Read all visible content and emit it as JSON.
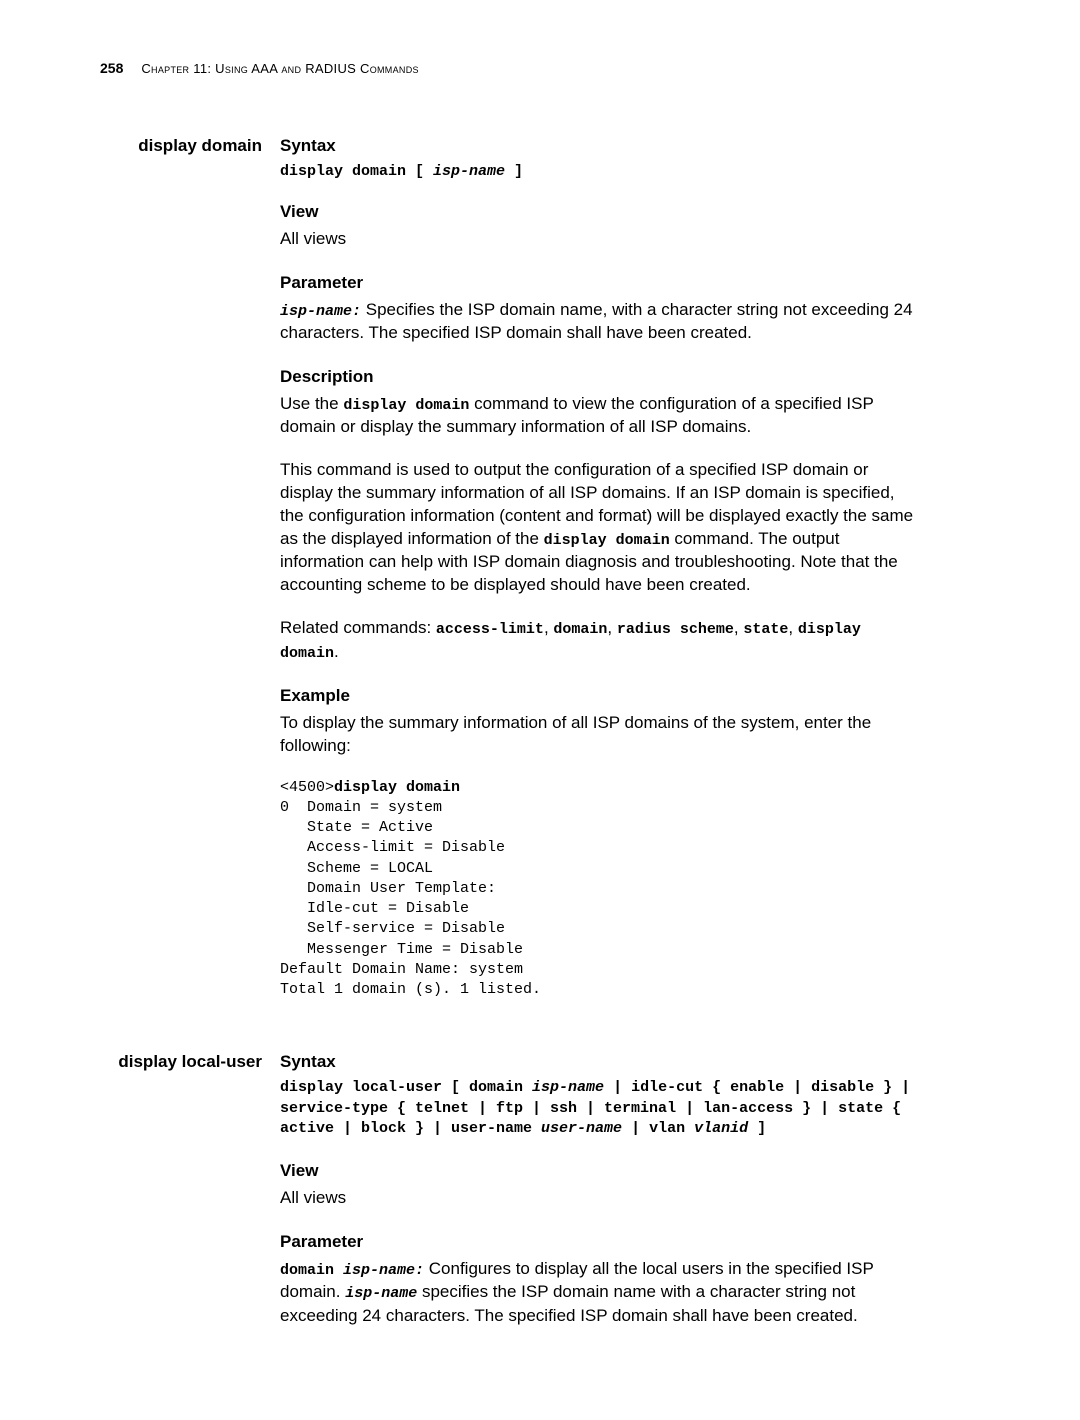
{
  "page": {
    "number": "258",
    "chapter": "Chapter 11: Using AAA and RADIUS Commands"
  },
  "sections": [
    {
      "left": "display domain",
      "blocks": [
        {
          "heading": "Syntax",
          "syntax_parts": [
            "display domain [ ",
            "isp-name",
            " ]"
          ]
        },
        {
          "heading": "View",
          "body": "All views"
        },
        {
          "heading": "Parameter",
          "param_lead": "isp-name:",
          "param_rest": " Specifies the ISP domain name, with a character string not exceeding 24 characters. The specified ISP domain shall have been created."
        },
        {
          "heading": "Description",
          "desc_p1_pre": "Use the ",
          "desc_p1_code": "display domain",
          "desc_p1_post": " command to view the configuration of a specified ISP domain or display the summary information of all ISP domains.",
          "desc_p2_pre": "This command is used to output the configuration of a specified ISP domain or display the summary information of all ISP domains. If an ISP domain is specified, the configuration information (content and format) will be displayed exactly the same as the displayed information of the ",
          "desc_p2_code": "display domain",
          "desc_p2_post": " command. The output information can help with ISP domain diagnosis and troubleshooting. Note that the accounting scheme to be displayed should have been created.",
          "related_label": "Related commands: ",
          "related_cmds": "access-limit",
          "related_sep1": ", ",
          "related_cmd2": "domain",
          "related_sep2": ", ",
          "related_cmd3": "radius scheme",
          "related_sep3": ", ",
          "related_cmd4": "state",
          "related_sep4": ", ",
          "related_cmd5": "display domain",
          "related_end": "."
        },
        {
          "heading": "Example",
          "example_intro": "To display the summary information of all ISP domains of the system, enter the following:",
          "prompt": "<4500>",
          "cmd": "display domain",
          "output": "0  Domain = system\n   State = Active\n   Access-limit = Disable\n   Scheme = LOCAL\n   Domain User Template:\n   Idle-cut = Disable\n   Self-service = Disable\n   Messenger Time = Disable\nDefault Domain Name: system\nTotal 1 domain (s). 1 listed."
        }
      ]
    },
    {
      "left": "display local-user",
      "blocks": [
        {
          "heading": "Syntax",
          "syntax_full": "display local-user [ domain <i>isp-name</i> | idle-cut { enable | disable } | service-type  { telnet | ftp | ssh | terminal | lan-access } | state { active | block } | user-name <i>user-name</i> | vlan <i>vlanid</i> ]"
        },
        {
          "heading": "View",
          "body": "All views"
        },
        {
          "heading": "Parameter",
          "param2_code": "domain ",
          "param2_italic": "isp-name:",
          "param2_text1": " Configures to display all the local users in the specified ISP domain. ",
          "param2_italic2": "isp-name",
          "param2_text2": " specifies the ISP domain name with a character string not exceeding 24 characters. The specified ISP domain shall have been created."
        }
      ]
    }
  ]
}
